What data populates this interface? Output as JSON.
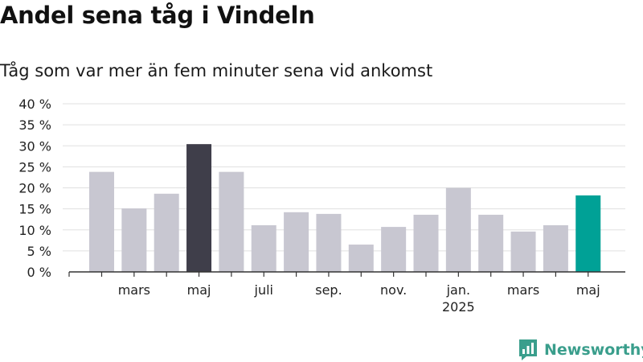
{
  "title": "Andel sena tåg i Vindeln",
  "subtitle": "Tåg som var mer än fem minuter sena vid ankomst",
  "brand": {
    "name": "Newsworthy",
    "icon": "newsworthy-logo-icon",
    "color": "#3a9e8c"
  },
  "colors": {
    "default_bar": "#c8c7d1",
    "highlight_bar": "#3f3e4a",
    "latest_bar": "#00a196",
    "grid": "#e0e0e0",
    "axis": "#333333"
  },
  "chart_data": {
    "type": "bar",
    "title": "Andel sena tåg i Vindeln",
    "subtitle": "Tåg som var mer än fem minuter sena vid ankomst",
    "categories": [
      "2024-02",
      "2024-03",
      "2024-04",
      "2024-05",
      "2024-06",
      "2024-07",
      "2024-08",
      "2024-09",
      "2024-10",
      "2024-11",
      "2024-12",
      "2025-01",
      "2025-02",
      "2025-03",
      "2025-04",
      "2025-05"
    ],
    "values": [
      23.8,
      15.1,
      18.6,
      30.4,
      23.8,
      11.1,
      14.2,
      13.8,
      6.5,
      10.7,
      13.6,
      20.0,
      13.6,
      9.6,
      11.1,
      18.2
    ],
    "bar_style": [
      "default",
      "default",
      "default",
      "highlight",
      "default",
      "default",
      "default",
      "default",
      "default",
      "default",
      "default",
      "default",
      "default",
      "default",
      "default",
      "latest"
    ],
    "x_tick_labels": [
      {
        "at": "2024-03",
        "label": "mars",
        "sub": ""
      },
      {
        "at": "2024-05",
        "label": "maj",
        "sub": ""
      },
      {
        "at": "2024-07",
        "label": "juli",
        "sub": ""
      },
      {
        "at": "2024-09",
        "label": "sep.",
        "sub": ""
      },
      {
        "at": "2024-11",
        "label": "nov.",
        "sub": ""
      },
      {
        "at": "2025-01",
        "label": "jan.",
        "sub": "2025"
      },
      {
        "at": "2025-03",
        "label": "mars",
        "sub": ""
      },
      {
        "at": "2025-05",
        "label": "maj",
        "sub": ""
      }
    ],
    "y_ticks": [
      0,
      5,
      10,
      15,
      20,
      25,
      30,
      35,
      40
    ],
    "y_tick_suffix": " %",
    "ylim": [
      0,
      40
    ],
    "xlabel": "",
    "ylabel": "",
    "grid": true,
    "legend": "none"
  }
}
